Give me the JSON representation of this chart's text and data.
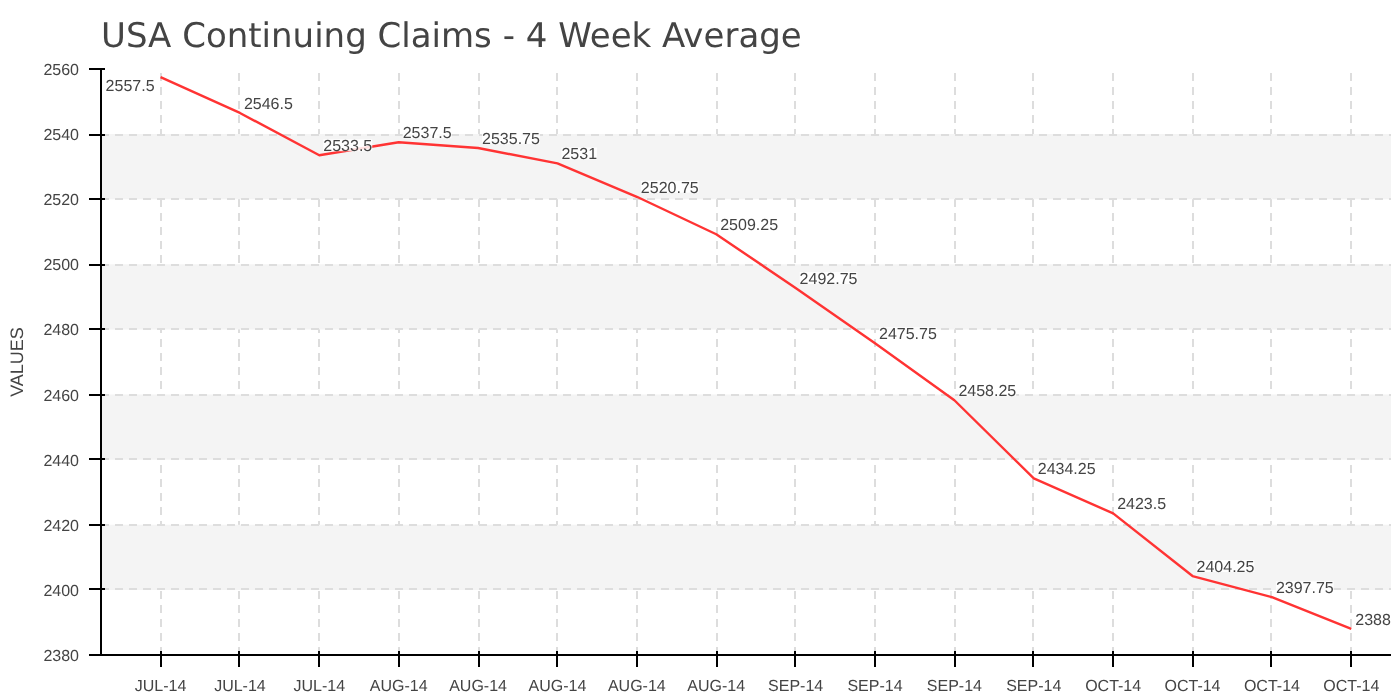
{
  "chart_data": {
    "type": "line",
    "title": "USA Continuing Claims - 4 Week Average",
    "ylabel": "VALUES",
    "categories": [
      "JUL-14",
      "JUL-14",
      "JUL-14",
      "AUG-14",
      "AUG-14",
      "AUG-14",
      "AUG-14",
      "AUG-14",
      "SEP-14",
      "SEP-14",
      "SEP-14",
      "SEP-14",
      "OCT-14",
      "OCT-14",
      "OCT-14",
      "OCT-14"
    ],
    "series": [
      {
        "color": "#ff3333",
        "values": [
          2557.5,
          2546.5,
          2533.5,
          2537.5,
          2535.75,
          2531,
          2520.75,
          2509.25,
          2492.75,
          2475.75,
          2458.25,
          2434.25,
          2423.5,
          2404.25,
          2397.75,
          2388
        ]
      }
    ],
    "data_labels": true,
    "ylim": [
      2380,
      2560
    ],
    "yticks": [
      2380,
      2400,
      2420,
      2440,
      2460,
      2480,
      2500,
      2520,
      2540,
      2560
    ],
    "grid": true,
    "marker": "none",
    "line_style": "solid"
  }
}
